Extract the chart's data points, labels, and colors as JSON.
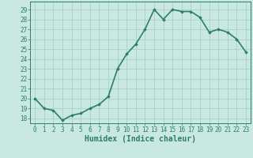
{
  "x": [
    0,
    1,
    2,
    3,
    4,
    5,
    6,
    7,
    8,
    9,
    10,
    11,
    12,
    13,
    14,
    15,
    16,
    17,
    18,
    19,
    20,
    21,
    22,
    23
  ],
  "y": [
    20.0,
    19.0,
    18.8,
    17.8,
    18.3,
    18.5,
    19.0,
    19.4,
    20.2,
    23.0,
    24.5,
    25.5,
    27.0,
    29.0,
    28.0,
    29.0,
    28.8,
    28.8,
    28.2,
    26.7,
    27.0,
    26.7,
    26.0,
    24.7
  ],
  "xlabel": "Humidex (Indice chaleur)",
  "ylabel": "",
  "xlim": [
    -0.5,
    23.5
  ],
  "ylim": [
    17.5,
    29.8
  ],
  "yticks": [
    18,
    19,
    20,
    21,
    22,
    23,
    24,
    25,
    26,
    27,
    28,
    29
  ],
  "xticks": [
    0,
    1,
    2,
    3,
    4,
    5,
    6,
    7,
    8,
    9,
    10,
    11,
    12,
    13,
    14,
    15,
    16,
    17,
    18,
    19,
    20,
    21,
    22,
    23
  ],
  "line_color": "#2e7d6e",
  "marker": "D",
  "marker_size": 1.8,
  "bg_color": "#c8e8e0",
  "grid_color": "#aad4cc",
  "tick_color": "#2e7d6e",
  "label_color": "#2e7d6e",
  "linewidth": 1.2,
  "tick_fontsize": 5.5,
  "xlabel_fontsize": 7.0
}
